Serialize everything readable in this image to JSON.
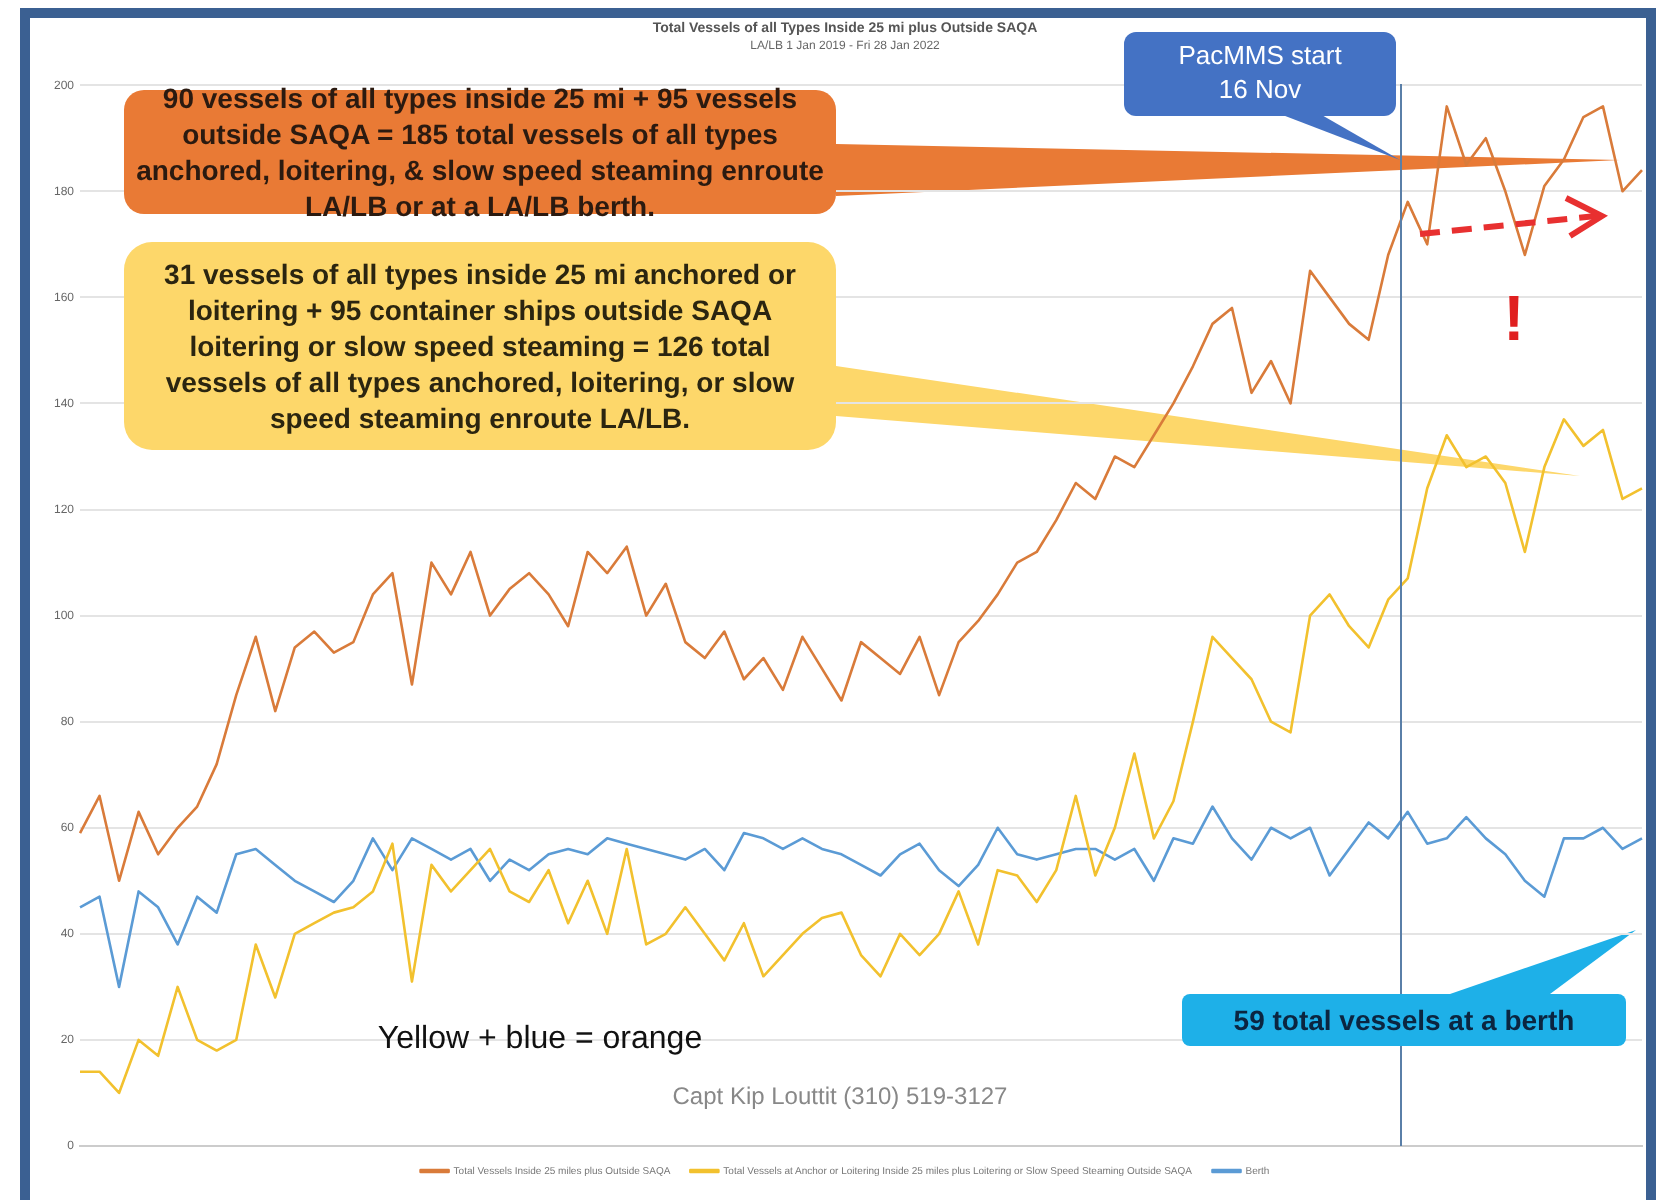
{
  "chart_data": {
    "type": "line",
    "title": "Total Vessels of all Types Inside 25 mi plus Outside SAQA",
    "subtitle": "LA/LB 1 Jan 2019 - Fri 28 Jan 2022",
    "categories": [
      null,
      null,
      null,
      null,
      null,
      null,
      null,
      null,
      null,
      null,
      null,
      null,
      null,
      null,
      null,
      null,
      null,
      null,
      null,
      null,
      null,
      null,
      null,
      null,
      null,
      null,
      null,
      null,
      null,
      null,
      null,
      null,
      null,
      null,
      null,
      null,
      null,
      null,
      null,
      null,
      null,
      null,
      null,
      null,
      null,
      null,
      null,
      null,
      null,
      null,
      null,
      null,
      null,
      null,
      null,
      null,
      null,
      null,
      null,
      null,
      null,
      null,
      null,
      null,
      null,
      null,
      null,
      null,
      null,
      null,
      null,
      null,
      null,
      null,
      null,
      null,
      null,
      null,
      null,
      null,
      null
    ],
    "series": [
      {
        "name": "Total Vessels Inside 25 miles plus Outside SAQA",
        "color": "#d97b3a",
        "values": [
          59,
          66,
          50,
          63,
          55,
          60,
          64,
          72,
          85,
          96,
          82,
          94,
          97,
          93,
          95,
          104,
          108,
          87,
          110,
          104,
          112,
          100,
          105,
          108,
          104,
          98,
          112,
          108,
          113,
          100,
          106,
          95,
          92,
          97,
          88,
          92,
          86,
          96,
          90,
          84,
          95,
          92,
          89,
          96,
          85,
          95,
          99,
          104,
          110,
          112,
          118,
          125,
          122,
          130,
          128,
          134,
          140,
          147,
          155,
          158,
          142,
          148,
          140,
          165,
          160,
          155,
          152,
          168,
          178,
          170,
          196,
          185,
          190,
          180,
          168,
          181,
          186,
          194,
          196,
          180,
          184
        ]
      },
      {
        "name": "Total Vessels at Anchor or Loitering Inside 25 miles plus Loitering or Slow Speed Steaming Outside SAQA",
        "color": "#f2c12e",
        "values": [
          14,
          14,
          10,
          20,
          17,
          30,
          20,
          18,
          20,
          38,
          28,
          40,
          42,
          44,
          45,
          48,
          57,
          31,
          53,
          48,
          52,
          56,
          48,
          46,
          52,
          42,
          50,
          40,
          56,
          38,
          40,
          45,
          40,
          35,
          42,
          32,
          36,
          40,
          43,
          44,
          36,
          32,
          40,
          36,
          40,
          48,
          38,
          52,
          51,
          46,
          52,
          66,
          51,
          60,
          74,
          58,
          65,
          80,
          96,
          92,
          88,
          80,
          78,
          100,
          104,
          98,
          94,
          103,
          107,
          124,
          134,
          128,
          130,
          125,
          112,
          128,
          137,
          132,
          135,
          122,
          124
        ]
      },
      {
        "name": "Berth",
        "color": "#5b9bd5",
        "values": [
          45,
          47,
          30,
          48,
          45,
          38,
          47,
          44,
          55,
          56,
          53,
          50,
          48,
          46,
          50,
          58,
          52,
          58,
          56,
          54,
          56,
          50,
          54,
          52,
          55,
          56,
          55,
          58,
          57,
          56,
          55,
          54,
          56,
          52,
          59,
          58,
          56,
          58,
          56,
          55,
          53,
          51,
          55,
          57,
          52,
          49,
          53,
          60,
          55,
          54,
          55,
          56,
          56,
          54,
          56,
          50,
          58,
          57,
          64,
          58,
          54,
          60,
          58,
          60,
          51,
          56,
          61,
          58,
          63,
          57,
          58,
          62,
          58,
          55,
          50,
          47,
          58,
          58,
          60,
          56,
          58
        ]
      }
    ],
    "ylim": [
      0,
      200
    ],
    "yticks": [
      0,
      20,
      40,
      60,
      80,
      100,
      120,
      140,
      160,
      180,
      200
    ],
    "grid": "y",
    "legend": "bottom",
    "tick_labels": "y",
    "line_style": "solid",
    "marker": "none",
    "annotations": [
      "90 vessels of all types inside 25 mi + 95 vessels outside SAQA = 185 total vessels of all types anchored, loitering, & slow speed steaming enroute LA/LB or at a LA/LB berth.",
      "31 vessels of all types inside 25 mi anchored or loitering + 95 container ships outside SAQA loitering or slow speed steaming = 126 total vessels of all types anchored, loitering, or slow speed steaming enroute LA/LB.",
      "!",
      "Yellow + blue = orange",
      "Capt Kip Louttit (310) 519-3127",
      "59 total vessels at a berth",
      "PacMMS start 16 Nov"
    ]
  }
}
